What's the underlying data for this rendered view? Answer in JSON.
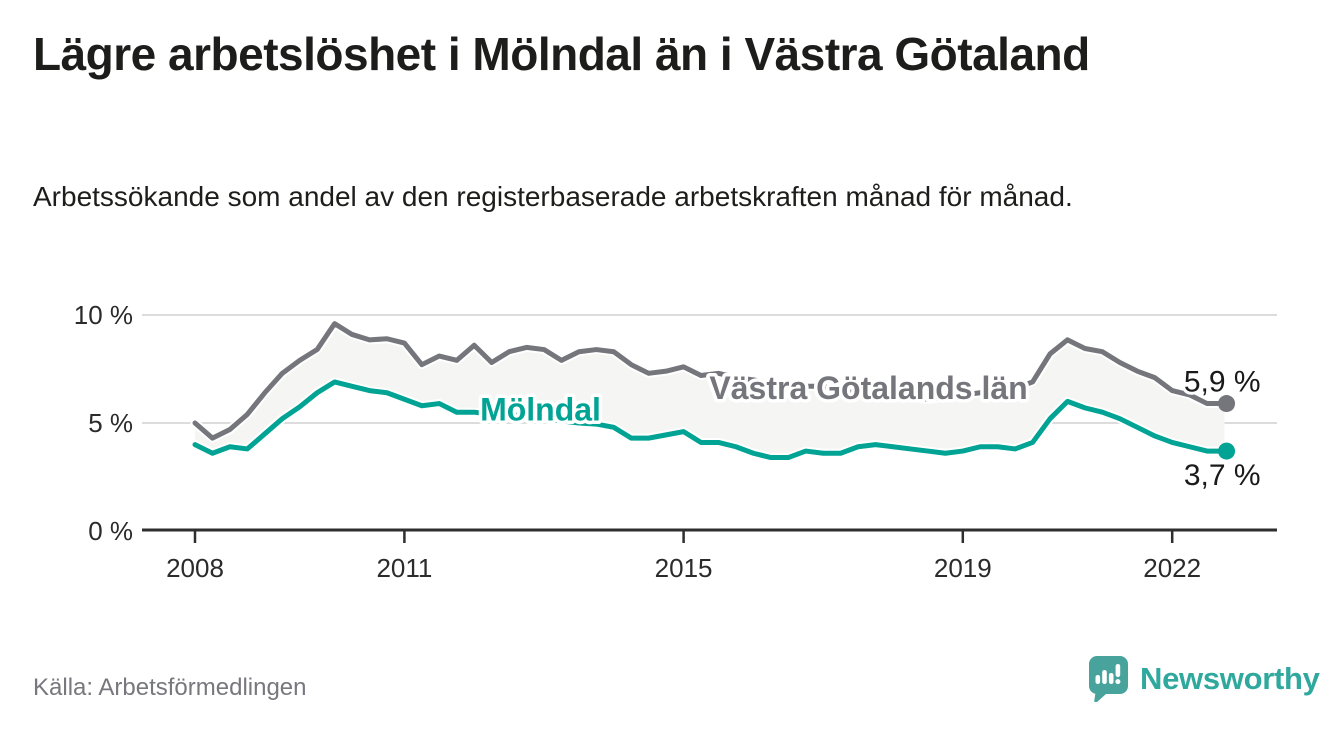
{
  "header": {
    "title": "Lägre arbetslöshet i Mölndal än i Västra Götaland",
    "subtitle": "Arbetssökande som andel av den registerbaserade arbetskraften månad för månad."
  },
  "footer": {
    "source": "Källa: Arbetsförmedlingen",
    "brand": {
      "name": "Newsworthy",
      "icon": "chart-speech-bubble-icon",
      "color": "#2fa89d",
      "bubble_color": "#47a39b"
    }
  },
  "colors": {
    "background": "#ffffff",
    "title_text": "#1d1d1b",
    "axis_line": "#2e2e2e",
    "gridline": "#dcdcdc",
    "tick_text": "#2b2b2b",
    "source_text": "#77777e",
    "fill_between": "#f5f5f4",
    "value_label_text": "#1a1a1a"
  },
  "chart_data": {
    "type": "line",
    "unit": "%",
    "grid": "horizontal",
    "legend": "inline-labels",
    "fill_between": true,
    "xlim": [
      2007.25,
      2023.45
    ],
    "ylim": [
      0,
      10.8
    ],
    "x_ticks": [
      2008,
      2011,
      2015,
      2019,
      2022
    ],
    "y_ticks": [
      {
        "value": 0,
        "label": "0 %"
      },
      {
        "value": 5,
        "label": "5 %"
      },
      {
        "value": 10,
        "label": "10 %"
      }
    ],
    "x": [
      2008.0,
      2008.25,
      2008.5,
      2008.75,
      2009.0,
      2009.25,
      2009.5,
      2009.75,
      2010.0,
      2010.25,
      2010.5,
      2010.75,
      2011.0,
      2011.25,
      2011.5,
      2011.75,
      2012.0,
      2012.25,
      2012.5,
      2012.75,
      2013.0,
      2013.25,
      2013.5,
      2013.75,
      2014.0,
      2014.25,
      2014.5,
      2014.75,
      2015.0,
      2015.25,
      2015.5,
      2015.75,
      2016.0,
      2016.25,
      2016.5,
      2016.75,
      2017.0,
      2017.25,
      2017.5,
      2017.75,
      2018.0,
      2018.25,
      2018.5,
      2018.75,
      2019.0,
      2019.25,
      2019.5,
      2019.75,
      2020.0,
      2020.25,
      2020.5,
      2020.75,
      2021.0,
      2021.25,
      2021.5,
      2021.75,
      2022.0,
      2022.25,
      2022.5,
      2022.75
    ],
    "series": [
      {
        "name": "Västra Götalands län",
        "color": "#75757c",
        "end_label": "5,9 %",
        "end_value": 5.9,
        "label_at": {
          "x": 2017.65,
          "y": 6.62
        },
        "values": [
          5.0,
          4.3,
          4.7,
          5.4,
          6.4,
          7.3,
          7.9,
          8.4,
          9.6,
          9.1,
          8.85,
          8.9,
          8.7,
          7.7,
          8.1,
          7.9,
          8.6,
          7.8,
          8.3,
          8.5,
          8.4,
          7.9,
          8.3,
          8.4,
          8.3,
          7.7,
          7.3,
          7.4,
          7.6,
          7.2,
          7.3,
          7.1,
          7.0,
          6.8,
          6.7,
          6.7,
          6.7,
          6.5,
          6.4,
          6.4,
          6.3,
          6.2,
          6.1,
          6.2,
          6.3,
          6.4,
          6.5,
          6.6,
          6.9,
          8.2,
          8.85,
          8.45,
          8.3,
          7.8,
          7.4,
          7.1,
          6.5,
          6.3,
          5.9,
          5.9
        ]
      },
      {
        "name": "Mölndal",
        "color": "#00a394",
        "end_label": "3,7 %",
        "end_value": 3.7,
        "label_at": {
          "x": 2012.95,
          "y": 5.62
        },
        "values": [
          4.0,
          3.6,
          3.9,
          3.8,
          4.5,
          5.2,
          5.75,
          6.4,
          6.9,
          6.7,
          6.5,
          6.4,
          6.1,
          5.8,
          5.9,
          5.5,
          5.5,
          5.4,
          5.4,
          5.3,
          5.2,
          5.1,
          5.0,
          4.95,
          4.8,
          4.3,
          4.3,
          4.45,
          4.6,
          4.1,
          4.1,
          3.9,
          3.6,
          3.4,
          3.4,
          3.7,
          3.6,
          3.6,
          3.9,
          4.0,
          3.9,
          3.8,
          3.7,
          3.6,
          3.7,
          3.9,
          3.9,
          3.8,
          4.1,
          5.2,
          6.0,
          5.7,
          5.5,
          5.2,
          4.8,
          4.4,
          4.1,
          3.9,
          3.7,
          3.7
        ]
      }
    ]
  }
}
